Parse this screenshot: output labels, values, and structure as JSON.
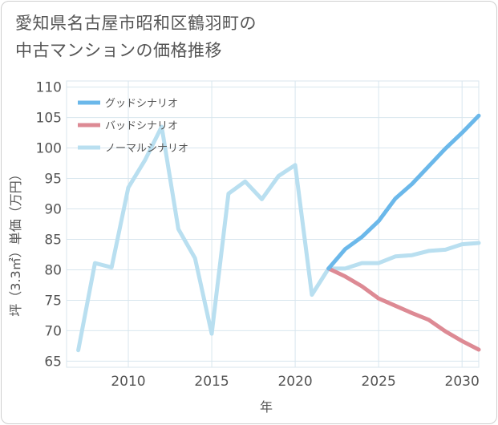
{
  "title_line1": "愛知県名古屋市昭和区鶴羽町の",
  "title_line2": "中古マンションの価格推移",
  "chart_data": {
    "type": "line",
    "title": "愛知県名古屋市昭和区鶴羽町の中古マンションの価格推移",
    "xlabel": "年",
    "ylabel": "坪（3.3㎡）単価（万円）",
    "xlim": [
      2006.3,
      2031
    ],
    "ylim": [
      64,
      111
    ],
    "xticks": [
      2010,
      2015,
      2020,
      2025,
      2030
    ],
    "yticks": [
      65,
      70,
      75,
      80,
      85,
      90,
      95,
      100,
      105,
      110
    ],
    "grid": true,
    "legend_position": "top-left",
    "series": [
      {
        "name": "グッドシナリオ",
        "color": "#6bb8ea",
        "x": [
          2022,
          2023,
          2024,
          2025,
          2026,
          2027,
          2028,
          2029,
          2030,
          2031
        ],
        "y": [
          80.2,
          83.4,
          85.4,
          88.0,
          91.7,
          94.1,
          97.0,
          99.9,
          102.5,
          105.3
        ]
      },
      {
        "name": "バッドシナリオ",
        "color": "#dd8a94",
        "x": [
          2022,
          2023,
          2024,
          2025,
          2026,
          2027,
          2028,
          2029,
          2030,
          2031
        ],
        "y": [
          80.2,
          78.9,
          77.3,
          75.3,
          74.1,
          72.9,
          71.8,
          69.9,
          68.3,
          66.9
        ]
      },
      {
        "name": "ノーマルシナリオ",
        "color": "#b9dff0",
        "x": [
          2007,
          2008,
          2009,
          2010,
          2011,
          2012,
          2013,
          2014,
          2015,
          2016,
          2017,
          2018,
          2019,
          2020,
          2021,
          2022,
          2023,
          2024,
          2025,
          2026,
          2027,
          2028,
          2029,
          2030,
          2031
        ],
        "y": [
          66.8,
          81.1,
          80.4,
          93.5,
          98.0,
          103.5,
          86.7,
          81.9,
          69.5,
          92.5,
          94.5,
          91.6,
          95.4,
          97.2,
          75.9,
          80.2,
          80.2,
          81.1,
          81.1,
          82.2,
          82.4,
          83.1,
          83.3,
          84.2,
          84.4
        ]
      }
    ]
  }
}
